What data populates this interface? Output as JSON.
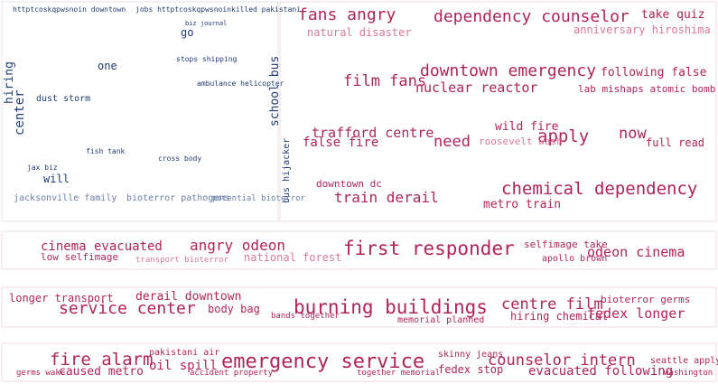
{
  "panels": [
    {
      "words": [
        "httptcoskqpwsnoin downtown",
        "jobs httptcoskqpwsnoinkilled pakistani",
        "biz journal",
        "go",
        "stops shipping",
        "one",
        "ambulance helicopter",
        "center",
        "hiring",
        "dust storm",
        "school bus",
        "bus hijacker",
        "will",
        "fish tank",
        "cross body",
        "jax biz",
        "jacksonville family",
        "bioterror pathogens",
        "potential bioterror"
      ]
    },
    {
      "words": [
        "fans angry",
        "dependency counselor",
        "take quiz",
        "natural disaster",
        "anniversary hiroshima",
        "downtown emergency",
        "following false",
        "film fans",
        "nuclear reactor",
        "lab mishaps atomic bomb",
        "trafford centre",
        "wild fire",
        "need",
        "apply",
        "now",
        "false fire",
        "roosevelt wash",
        "full read",
        "downtown dc",
        "chemical dependency",
        "train derail",
        "metro train"
      ]
    },
    {
      "words": [
        "cinema evacuated",
        "angry odeon",
        "first responder",
        "odeon cinema",
        "low selfimage",
        "national forest",
        "selfimage take",
        "apollo brown",
        "transport bioterror"
      ]
    },
    {
      "words": [
        "longer transport",
        "derail downtown",
        "service center",
        "body bag",
        "bands together",
        "burning buildings",
        "memorial planned",
        "centre film",
        "bioterror germs",
        "hiring chemical",
        "fedex longer"
      ]
    },
    {
      "words": [
        "pakistani air",
        "fire alarm",
        "oil spill",
        "emergency service",
        "skinny jeans",
        "counselor intern",
        "seattle apply",
        "germs wake",
        "caused metro",
        "accident property",
        "together memorial",
        "fedex stop",
        "evacuated following",
        "washington dc"
      ]
    }
  ]
}
